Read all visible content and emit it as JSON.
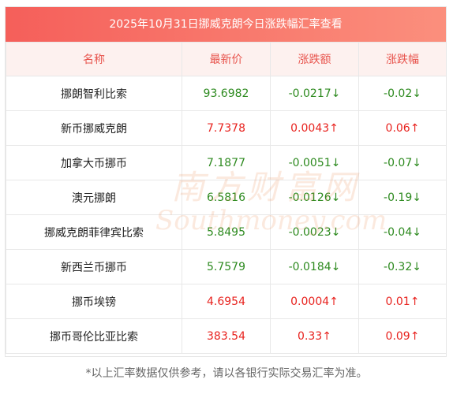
{
  "title": "2025年10月31日挪威克朗今日涨跌幅汇率查看",
  "headers": [
    "名称",
    "最新价",
    "涨跌额",
    "涨跌幅"
  ],
  "rows": [
    {
      "name": "挪朗智利比索",
      "price": "93.6982",
      "change": "-0.0217↓",
      "pct": "-0.02↓",
      "dir": "down"
    },
    {
      "name": "新币挪威克朗",
      "price": "7.7378",
      "change": "0.0043↑",
      "pct": "0.06↑",
      "dir": "up"
    },
    {
      "name": "加拿大币挪币",
      "price": "7.1877",
      "change": "-0.0051↓",
      "pct": "-0.07↓",
      "dir": "down"
    },
    {
      "name": "澳元挪朗",
      "price": "6.5816",
      "change": "-0.0126↓",
      "pct": "-0.19↓",
      "dir": "down"
    },
    {
      "name": "挪威克朗菲律宾比索",
      "price": "5.8495",
      "change": "-0.0023↓",
      "pct": "-0.04↓",
      "dir": "down"
    },
    {
      "name": "新西兰币挪币",
      "price": "5.7579",
      "change": "-0.0184↓",
      "pct": "-0.32↓",
      "dir": "down"
    },
    {
      "name": "挪币埃镑",
      "price": "4.6954",
      "change": "0.0004↑",
      "pct": "0.01↑",
      "dir": "up"
    },
    {
      "name": "挪币哥伦比亚比索",
      "price": "383.54",
      "change": "0.33↑",
      "pct": "0.09↑",
      "dir": "up"
    }
  ],
  "colors": {
    "up": "#e8231f",
    "down": "#2d8a1f",
    "header_text": "#e8554e",
    "title_bg": "#f55f5a"
  },
  "watermark": {
    "cn": "南方财富网",
    "en": "Southmoney.com"
  },
  "footer": "*以上汇率数据仅供参考，请以各银行实际交易汇率为准。"
}
